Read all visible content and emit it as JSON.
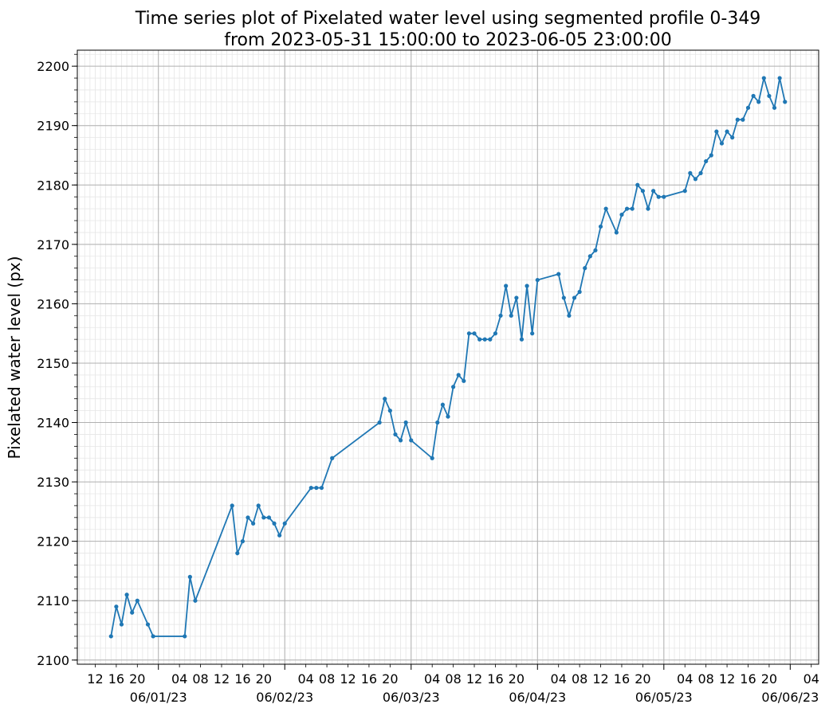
{
  "chart_data": {
    "type": "line",
    "title": "Time series plot of Pixelated water level using segmented profile 0-349",
    "subtitle": "from 2023-05-31 15:00:00 to 2023-06-05 23:00:00",
    "ylabel": "Pixelated water level (px)",
    "grid": true,
    "minor_grid": {
      "x_hours": 1,
      "y_step": 2
    },
    "xlim": [
      "2023-05-31 08:36",
      "2023-06-06 05:24"
    ],
    "ylim": [
      2099.3,
      2202.7
    ],
    "yticks": [
      2100,
      2110,
      2120,
      2130,
      2140,
      2150,
      2160,
      2170,
      2180,
      2190,
      2200
    ],
    "xticks": [
      {
        "value": "2023-06-01 00:00",
        "label": "06/01/23"
      },
      {
        "value": "2023-06-02 00:00",
        "label": "06/02/23"
      },
      {
        "value": "2023-06-03 00:00",
        "label": "06/03/23"
      },
      {
        "value": "2023-06-04 00:00",
        "label": "06/04/23"
      },
      {
        "value": "2023-06-05 00:00",
        "label": "06/05/23"
      },
      {
        "value": "2023-06-06 00:00",
        "label": "06/06/23"
      }
    ],
    "xminorticks": [
      {
        "value": "2023-05-31 12:00",
        "label": "12"
      },
      {
        "value": "2023-05-31 16:00",
        "label": "16"
      },
      {
        "value": "2023-05-31 20:00",
        "label": "20"
      },
      {
        "value": "2023-06-01 04:00",
        "label": "04"
      },
      {
        "value": "2023-06-01 08:00",
        "label": "08"
      },
      {
        "value": "2023-06-01 12:00",
        "label": "12"
      },
      {
        "value": "2023-06-01 16:00",
        "label": "16"
      },
      {
        "value": "2023-06-01 20:00",
        "label": "20"
      },
      {
        "value": "2023-06-02 04:00",
        "label": "04"
      },
      {
        "value": "2023-06-02 08:00",
        "label": "08"
      },
      {
        "value": "2023-06-02 12:00",
        "label": "12"
      },
      {
        "value": "2023-06-02 16:00",
        "label": "16"
      },
      {
        "value": "2023-06-02 20:00",
        "label": "20"
      },
      {
        "value": "2023-06-03 04:00",
        "label": "04"
      },
      {
        "value": "2023-06-03 08:00",
        "label": "08"
      },
      {
        "value": "2023-06-03 12:00",
        "label": "12"
      },
      {
        "value": "2023-06-03 16:00",
        "label": "16"
      },
      {
        "value": "2023-06-03 20:00",
        "label": "20"
      },
      {
        "value": "2023-06-04 04:00",
        "label": "04"
      },
      {
        "value": "2023-06-04 08:00",
        "label": "08"
      },
      {
        "value": "2023-06-04 12:00",
        "label": "12"
      },
      {
        "value": "2023-06-04 16:00",
        "label": "16"
      },
      {
        "value": "2023-06-04 20:00",
        "label": "20"
      },
      {
        "value": "2023-06-05 04:00",
        "label": "04"
      },
      {
        "value": "2023-06-05 08:00",
        "label": "08"
      },
      {
        "value": "2023-06-05 12:00",
        "label": "12"
      },
      {
        "value": "2023-06-05 16:00",
        "label": "16"
      },
      {
        "value": "2023-06-05 20:00",
        "label": "20"
      },
      {
        "value": "2023-06-06 04:00",
        "label": "04"
      }
    ],
    "x": [
      "2023-05-31 15:00",
      "2023-05-31 16:00",
      "2023-05-31 17:00",
      "2023-05-31 18:00",
      "2023-05-31 19:00",
      "2023-05-31 20:00",
      "2023-05-31 22:00",
      "2023-05-31 23:00",
      "2023-06-01 05:00",
      "2023-06-01 06:00",
      "2023-06-01 07:00",
      "2023-06-01 14:00",
      "2023-06-01 15:00",
      "2023-06-01 16:00",
      "2023-06-01 17:00",
      "2023-06-01 18:00",
      "2023-06-01 19:00",
      "2023-06-01 20:00",
      "2023-06-01 21:00",
      "2023-06-01 22:00",
      "2023-06-01 23:00",
      "2023-06-02 00:00",
      "2023-06-02 05:00",
      "2023-06-02 06:00",
      "2023-06-02 07:00",
      "2023-06-02 09:00",
      "2023-06-02 18:00",
      "2023-06-02 19:00",
      "2023-06-02 20:00",
      "2023-06-02 21:00",
      "2023-06-02 22:00",
      "2023-06-02 23:00",
      "2023-06-03 00:00",
      "2023-06-03 04:00",
      "2023-06-03 05:00",
      "2023-06-03 06:00",
      "2023-06-03 07:00",
      "2023-06-03 08:00",
      "2023-06-03 09:00",
      "2023-06-03 10:00",
      "2023-06-03 11:00",
      "2023-06-03 12:00",
      "2023-06-03 13:00",
      "2023-06-03 14:00",
      "2023-06-03 15:00",
      "2023-06-03 16:00",
      "2023-06-03 17:00",
      "2023-06-03 18:00",
      "2023-06-03 19:00",
      "2023-06-03 20:00",
      "2023-06-03 21:00",
      "2023-06-03 22:00",
      "2023-06-03 23:00",
      "2023-06-04 00:00",
      "2023-06-04 04:00",
      "2023-06-04 05:00",
      "2023-06-04 06:00",
      "2023-06-04 07:00",
      "2023-06-04 08:00",
      "2023-06-04 09:00",
      "2023-06-04 10:00",
      "2023-06-04 11:00",
      "2023-06-04 12:00",
      "2023-06-04 13:00",
      "2023-06-04 15:00",
      "2023-06-04 16:00",
      "2023-06-04 17:00",
      "2023-06-04 18:00",
      "2023-06-04 19:00",
      "2023-06-04 20:00",
      "2023-06-04 21:00",
      "2023-06-04 22:00",
      "2023-06-04 23:00",
      "2023-06-05 00:00",
      "2023-06-05 04:00",
      "2023-06-05 05:00",
      "2023-06-05 06:00",
      "2023-06-05 07:00",
      "2023-06-05 08:00",
      "2023-06-05 09:00",
      "2023-06-05 10:00",
      "2023-06-05 11:00",
      "2023-06-05 12:00",
      "2023-06-05 13:00",
      "2023-06-05 14:00",
      "2023-06-05 15:00",
      "2023-06-05 16:00",
      "2023-06-05 17:00",
      "2023-06-05 18:00",
      "2023-06-05 19:00",
      "2023-06-05 20:00",
      "2023-06-05 21:00",
      "2023-06-05 22:00",
      "2023-06-05 23:00"
    ],
    "series": [
      {
        "color": "#1f77b4",
        "values": [
          2104,
          2109,
          2106,
          2111,
          2108,
          2110,
          2106,
          2104,
          2104,
          2114,
          2110,
          2126,
          2118,
          2120,
          2124,
          2123,
          2126,
          2124,
          2124,
          2123,
          2121,
          2123,
          2129,
          2129,
          2129,
          2134,
          2140,
          2144,
          2142,
          2138,
          2137,
          2140,
          2137,
          2134,
          2140,
          2143,
          2141,
          2146,
          2148,
          2147,
          2155,
          2155,
          2154,
          2154,
          2154,
          2155,
          2158,
          2163,
          2158,
          2161,
          2154,
          2163,
          2155,
          2164,
          2165,
          2161,
          2158,
          2161,
          2162,
          2166,
          2168,
          2169,
          2173,
          2176,
          2172,
          2175,
          2176,
          2176,
          2180,
          2179,
          2176,
          2179,
          2178,
          2178,
          2179,
          2182,
          2181,
          2182,
          2184,
          2185,
          2189,
          2187,
          2189,
          2188,
          2191,
          2191,
          2193,
          2195,
          2194,
          2198,
          2195,
          2193,
          2198,
          2194
        ]
      }
    ]
  }
}
